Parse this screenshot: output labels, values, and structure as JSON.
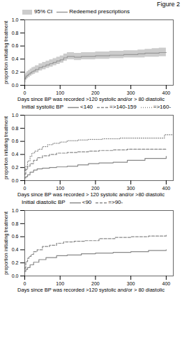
{
  "title": "Figure 2",
  "chart_data": [
    {
      "type": "step",
      "x_label": "Days since BP was recorded >120 systolic and/or > 80 diastolic",
      "y_label": "proportion initiating treatment",
      "xlim": [
        0,
        420
      ],
      "ylim": [
        0,
        1
      ],
      "xticks": [
        0,
        100,
        200,
        300,
        400
      ],
      "yticks": [
        {
          "value": 0,
          "label": "0.0"
        },
        0.2,
        0.4,
        0.6,
        0.8,
        {
          "value": 1,
          "label": "1.0"
        }
      ],
      "series": [
        {
          "name": "95% CI",
          "type": "band",
          "color": "#cccccc",
          "x": [
            0,
            3,
            6,
            10,
            15,
            20,
            25,
            30,
            40,
            50,
            60,
            70,
            80,
            90,
            100,
            110,
            120,
            140,
            160,
            180,
            200,
            220,
            240,
            260,
            280,
            300,
            320,
            340,
            360,
            380,
            400
          ],
          "lower": [
            0.04,
            0.08,
            0.1,
            0.12,
            0.14,
            0.16,
            0.17,
            0.19,
            0.22,
            0.24,
            0.26,
            0.28,
            0.3,
            0.32,
            0.34,
            0.37,
            0.39,
            0.38,
            0.39,
            0.39,
            0.4,
            0.4,
            0.41,
            0.41,
            0.42,
            0.42,
            0.42,
            0.43,
            0.43,
            0.44,
            0.44
          ],
          "upper": [
            0.16,
            0.19,
            0.21,
            0.23,
            0.25,
            0.27,
            0.28,
            0.3,
            0.33,
            0.35,
            0.37,
            0.39,
            0.41,
            0.43,
            0.45,
            0.48,
            0.5,
            0.49,
            0.5,
            0.5,
            0.51,
            0.51,
            0.52,
            0.52,
            0.53,
            0.53,
            0.54,
            0.55,
            0.56,
            0.57,
            0.58
          ]
        },
        {
          "name": "Redeemed prescriptions",
          "type": "step",
          "color": "#999999",
          "line_style": "solid",
          "x": [
            0,
            3,
            6,
            10,
            15,
            20,
            25,
            30,
            40,
            50,
            60,
            70,
            80,
            90,
            100,
            110,
            120,
            140,
            160,
            180,
            200,
            220,
            240,
            260,
            280,
            300,
            320,
            340,
            360,
            380,
            400
          ],
          "values": [
            0.1,
            0.13,
            0.15,
            0.17,
            0.19,
            0.21,
            0.22,
            0.24,
            0.27,
            0.29,
            0.31,
            0.33,
            0.35,
            0.37,
            0.39,
            0.42,
            0.44,
            0.43,
            0.44,
            0.44,
            0.45,
            0.45,
            0.46,
            0.46,
            0.47,
            0.47,
            0.48,
            0.49,
            0.49,
            0.5,
            0.5
          ]
        }
      ]
    },
    {
      "type": "step",
      "x_label": "Days since BP was recorded > 120 systolic and/or >80 diastolic",
      "y_label": "proportion initiating treatment",
      "xlim": [
        0,
        420
      ],
      "ylim": [
        0,
        1
      ],
      "xticks": [
        0,
        100,
        200,
        300,
        400
      ],
      "yticks": [
        {
          "value": 0,
          "label": "0.0"
        },
        0.2,
        0.4,
        0.6,
        0.8,
        {
          "value": 1,
          "label": "1.0"
        }
      ],
      "legend_title": "Initial systolic BP",
      "series": [
        {
          "name": "<140",
          "color": "#888888",
          "line_style": "solid",
          "x": [
            0,
            3,
            8,
            15,
            25,
            35,
            50,
            70,
            90,
            120,
            150,
            180,
            210,
            250,
            290,
            340,
            400
          ],
          "values": [
            0.04,
            0.06,
            0.09,
            0.13,
            0.16,
            0.18,
            0.19,
            0.2,
            0.21,
            0.22,
            0.24,
            0.26,
            0.27,
            0.28,
            0.31,
            0.34,
            0.37
          ]
        },
        {
          "name": "=>140-159",
          "color": "#888888",
          "line_style": "dashed",
          "x": [
            0,
            3,
            8,
            15,
            25,
            35,
            50,
            70,
            90,
            120,
            150,
            180,
            210,
            250,
            290,
            340,
            400
          ],
          "values": [
            0.1,
            0.17,
            0.22,
            0.26,
            0.31,
            0.35,
            0.38,
            0.4,
            0.42,
            0.43,
            0.44,
            0.45,
            0.46,
            0.47,
            0.48,
            0.48,
            0.49
          ]
        },
        {
          "name": "=>160-",
          "color": "#888888",
          "line_style": "dotted",
          "x": [
            0,
            3,
            8,
            15,
            20,
            28,
            38,
            50,
            65,
            80,
            100,
            120,
            150,
            180,
            220,
            270,
            340,
            395,
            420
          ],
          "values": [
            0.16,
            0.22,
            0.3,
            0.37,
            0.42,
            0.45,
            0.48,
            0.52,
            0.55,
            0.57,
            0.59,
            0.61,
            0.62,
            0.63,
            0.64,
            0.65,
            0.65,
            0.7,
            0.7
          ]
        }
      ]
    },
    {
      "type": "step",
      "x_label": "Days since BP was recorded >120 systolic and/or > 80 diastolic",
      "y_label": "proportion initiating treatment",
      "xlim": [
        0,
        420
      ],
      "ylim": [
        0,
        1
      ],
      "xticks": [
        0,
        100,
        200,
        300,
        400
      ],
      "yticks": [
        {
          "value": 0,
          "label": "0.0"
        },
        0.2,
        0.4,
        0.6,
        0.8,
        {
          "value": 1,
          "label": "1.0"
        }
      ],
      "legend_title": "Initial diastolic BP",
      "series": [
        {
          "name": "<90",
          "color": "#888888",
          "line_style": "solid",
          "x": [
            0,
            3,
            8,
            15,
            25,
            40,
            60,
            90,
            120,
            160,
            200,
            250,
            300,
            350,
            400
          ],
          "values": [
            0.07,
            0.1,
            0.13,
            0.17,
            0.21,
            0.25,
            0.28,
            0.31,
            0.32,
            0.34,
            0.35,
            0.36,
            0.37,
            0.39,
            0.4
          ]
        },
        {
          "name": "=>90-",
          "color": "#888888",
          "line_style": "dashed",
          "x": [
            0,
            3,
            8,
            12,
            18,
            25,
            35,
            50,
            70,
            90,
            110,
            140,
            170,
            210,
            255,
            300,
            350,
            400
          ],
          "values": [
            0.12,
            0.22,
            0.27,
            0.3,
            0.33,
            0.37,
            0.4,
            0.45,
            0.47,
            0.5,
            0.52,
            0.53,
            0.54,
            0.57,
            0.59,
            0.6,
            0.61,
            0.64
          ]
        }
      ]
    }
  ]
}
